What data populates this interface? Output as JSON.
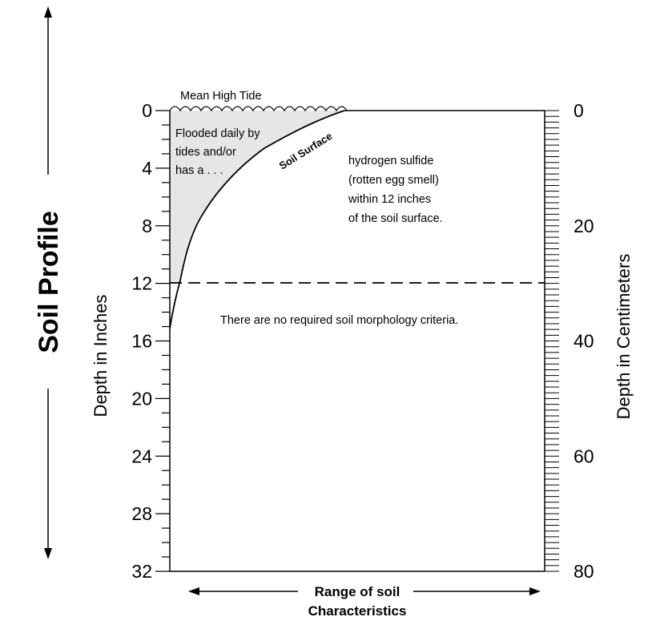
{
  "title": "Soil Profile",
  "left_axis": {
    "label": "Depth in Inches",
    "ticks": [
      "0",
      "4",
      "8",
      "12",
      "16",
      "20",
      "24",
      "28",
      "32"
    ],
    "max": 32,
    "minor_step": 1
  },
  "right_axis": {
    "label": "Depth in Centimeters",
    "ticks": [
      "0",
      "20",
      "40",
      "60",
      "80"
    ],
    "max": 80,
    "minor_step": 1
  },
  "bottom": {
    "label_line1": "Range of soil",
    "label_line2": "Characteristics"
  },
  "annotations": {
    "mean_high_tide": "Mean High Tide",
    "flooded_line1": "Flooded daily by",
    "flooded_line2": "tides and/or",
    "flooded_line3": "has a . . .",
    "soil_surface": "Soil Surface",
    "hydrogen_line1": "hydrogen sulfide",
    "hydrogen_line2": "(rotten egg smell)",
    "hydrogen_line3": "within 12 inches",
    "hydrogen_line4": "of the soil surface.",
    "no_criteria": "There are no required soil morphology criteria."
  },
  "threshold_depth_inches": 12,
  "colors": {
    "flooded_fill": "#e6e6e6",
    "line": "#000000"
  }
}
